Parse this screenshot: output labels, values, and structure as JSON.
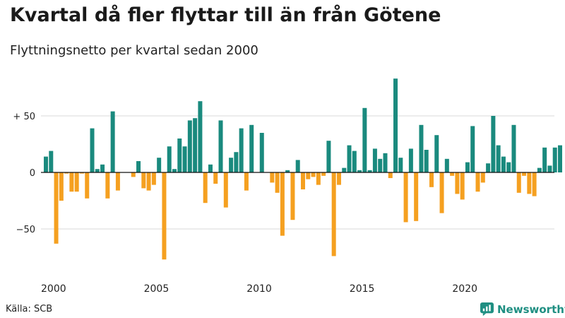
{
  "title": "Kvartal då fler flyttar till än från Götene",
  "subtitle": "Flyttningsnetto per kvartal sedan 2000",
  "source": "Källa: SCB",
  "brand": "Newsworthy",
  "colors": {
    "positive": "#1a8a7e",
    "negative": "#f5a020",
    "brand": "#1f8f82"
  },
  "chart_data": {
    "type": "bar",
    "title": "Kvartal då fler flyttar till än från Götene",
    "subtitle": "Flyttningsnetto per kvartal sedan 2000",
    "xlabel": "",
    "ylabel": "",
    "ylim": [
      -80,
      90
    ],
    "yticks": [
      {
        "value": 50,
        "label": "+ 50"
      },
      {
        "value": 0,
        "label": "0"
      },
      {
        "value": -50,
        "label": "−50"
      }
    ],
    "xticks": [
      {
        "year": 2000,
        "label": "2000"
      },
      {
        "year": 2005,
        "label": "2005"
      },
      {
        "year": 2010,
        "label": "2010"
      },
      {
        "year": 2015,
        "label": "2015"
      },
      {
        "year": 2020,
        "label": "2020"
      }
    ],
    "start": "2000 Q1",
    "grid": true,
    "legend": "none",
    "values": [
      14,
      19,
      -63,
      -25,
      -1,
      -17,
      -17,
      -1,
      -23,
      39,
      3,
      7,
      -23,
      54,
      -16,
      0,
      0,
      -4,
      10,
      -14,
      -16,
      -11,
      13,
      -77,
      23,
      3,
      30,
      23,
      46,
      48,
      63,
      -27,
      7,
      -10,
      46,
      -31,
      13,
      18,
      39,
      -16,
      42,
      0,
      35,
      0,
      -9,
      -18,
      -56,
      2,
      -42,
      11,
      -15,
      -6,
      -4,
      -11,
      -3,
      28,
      -74,
      -11,
      4,
      24,
      19,
      2,
      57,
      2,
      21,
      12,
      17,
      -5,
      83,
      13,
      -44,
      21,
      -43,
      42,
      20,
      -13,
      33,
      -36,
      12,
      -3,
      -19,
      -24,
      9,
      41,
      -17,
      -9,
      8,
      50,
      24,
      14,
      9,
      42,
      -18,
      -3,
      -19,
      -21,
      4,
      22,
      6,
      22,
      24
    ]
  }
}
